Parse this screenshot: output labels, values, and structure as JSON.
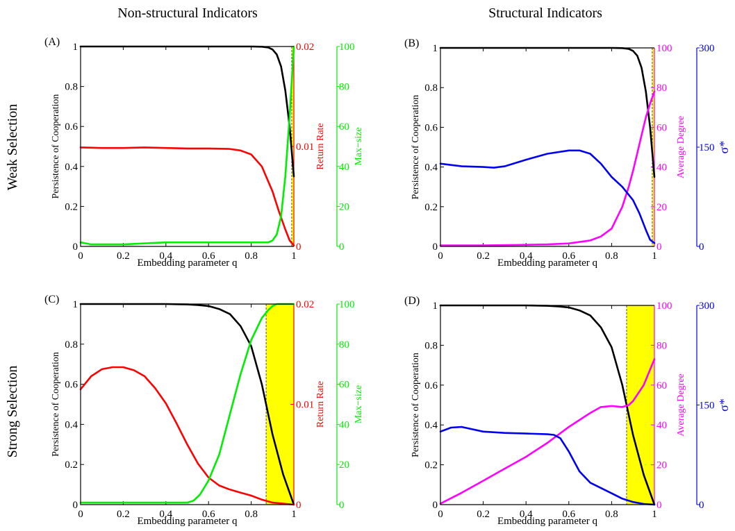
{
  "header": {
    "col_left": "Non-structural Indicators",
    "col_right": "Structural Indicators",
    "row_top": "Weak Selection",
    "row_bottom": "Strong Selection"
  },
  "colors": {
    "coop": "#000000",
    "return_rate": "#ff0000",
    "max_size": "#00ee00",
    "avg_degree": "#ff00ff",
    "sigma": "#0000ee",
    "shade": "#ffff00"
  },
  "chart_data": [
    {
      "panel": "(A)",
      "type": "line",
      "xlabel": "Embedding parameter q",
      "xlim": [
        0,
        1
      ],
      "xticks": [
        "0",
        "0.2",
        "0.4",
        "0.6",
        "0.8",
        "1"
      ],
      "axes": [
        {
          "label": "Persistence of Cooperation",
          "side": "left",
          "lim": [
            0,
            1
          ],
          "ticks": [
            "0",
            "0.2",
            "0.4",
            "0.6",
            "0.8",
            "1"
          ],
          "color": "#000000"
        },
        {
          "label": "Return Rate",
          "side": "right",
          "lim": [
            0,
            0.02
          ],
          "ticks": [
            "0",
            "0.01",
            "0.02"
          ],
          "color": "#ff0000"
        },
        {
          "label": "Max−size",
          "side": "right-outer",
          "lim": [
            0,
            100
          ],
          "ticks": [
            "0",
            "20",
            "40",
            "60",
            "80",
            "100"
          ],
          "color": "#00ee00"
        }
      ],
      "shaded_region": [
        0.99,
        1
      ],
      "series": [
        {
          "axis": 0,
          "color": "#000000",
          "x": [
            0,
            0.2,
            0.4,
            0.6,
            0.8,
            0.85,
            0.88,
            0.9,
            0.92,
            0.94,
            0.96,
            0.98,
            1.0
          ],
          "y": [
            1,
            1,
            1,
            1,
            1,
            0.999,
            0.995,
            0.985,
            0.96,
            0.9,
            0.78,
            0.6,
            0.35
          ]
        },
        {
          "axis": 1,
          "color": "#ff0000",
          "x": [
            0,
            0.1,
            0.2,
            0.3,
            0.4,
            0.5,
            0.6,
            0.7,
            0.75,
            0.8,
            0.85,
            0.9,
            0.93,
            0.96,
            0.98,
            1.0
          ],
          "y": [
            0.0099,
            0.00985,
            0.00985,
            0.0099,
            0.00985,
            0.0098,
            0.0098,
            0.00975,
            0.0096,
            0.0092,
            0.008,
            0.0055,
            0.0035,
            0.0017,
            0.0006,
            0.0001
          ]
        },
        {
          "axis": 2,
          "color": "#00ee00",
          "x": [
            0,
            0.05,
            0.2,
            0.4,
            0.6,
            0.8,
            0.88,
            0.9,
            0.92,
            0.94,
            0.96,
            0.98,
            1.0
          ],
          "y": [
            2,
            1,
            1,
            2,
            2,
            2,
            2,
            3,
            6,
            15,
            35,
            65,
            100
          ]
        }
      ]
    },
    {
      "panel": "(B)",
      "type": "line",
      "xlabel": "Embedding parameter q",
      "xlim": [
        0,
        1
      ],
      "xticks": [
        "0",
        "0.2",
        "0.4",
        "0.6",
        "0.8",
        "1"
      ],
      "axes": [
        {
          "label": "Persistence of Cooperation",
          "side": "left",
          "lim": [
            0,
            1
          ],
          "ticks": [
            "0",
            "0.2",
            "0.4",
            "0.6",
            "0.8",
            "1"
          ],
          "color": "#000000"
        },
        {
          "label": "Average Degree",
          "side": "right",
          "lim": [
            0,
            100
          ],
          "ticks": [
            "0",
            "20",
            "40",
            "60",
            "80",
            "100"
          ],
          "color": "#ff00ff"
        },
        {
          "label": "σ*",
          "side": "right-outer",
          "lim": [
            0,
            300
          ],
          "ticks": [
            "0",
            "150",
            "300"
          ],
          "color": "#0000ee"
        }
      ],
      "shaded_region": [
        0.99,
        1
      ],
      "series": [
        {
          "axis": 0,
          "color": "#000000",
          "x": [
            0,
            0.2,
            0.4,
            0.6,
            0.8,
            0.85,
            0.88,
            0.9,
            0.92,
            0.94,
            0.96,
            0.98,
            1.0
          ],
          "y": [
            1,
            1,
            1,
            1,
            1,
            0.999,
            0.995,
            0.985,
            0.96,
            0.9,
            0.78,
            0.6,
            0.35
          ]
        },
        {
          "axis": 1,
          "color": "#ff00ff",
          "x": [
            0,
            0.2,
            0.4,
            0.5,
            0.6,
            0.7,
            0.75,
            0.8,
            0.85,
            0.88,
            0.9,
            0.92,
            0.94,
            0.96,
            0.98,
            1.0
          ],
          "y": [
            0.5,
            0.5,
            0.8,
            1,
            1.5,
            3,
            5,
            9,
            20,
            30,
            38,
            47,
            56,
            65,
            72,
            78
          ]
        },
        {
          "axis": 2,
          "color": "#0000ee",
          "x": [
            0,
            0.1,
            0.2,
            0.25,
            0.3,
            0.4,
            0.5,
            0.6,
            0.65,
            0.7,
            0.75,
            0.8,
            0.85,
            0.9,
            0.93,
            0.96,
            0.98,
            1.0
          ],
          "y": [
            125,
            121,
            120,
            119,
            121,
            131,
            140,
            145,
            145,
            140,
            125,
            105,
            90,
            70,
            50,
            25,
            10,
            5
          ]
        }
      ]
    },
    {
      "panel": "(C)",
      "type": "line",
      "xlabel": "Embedding parameter q",
      "xlim": [
        0,
        1
      ],
      "xticks": [
        "0",
        "0.2",
        "0.4",
        "0.6",
        "0.8",
        "1"
      ],
      "axes": [
        {
          "label": "Persistence of Cooperation",
          "side": "left",
          "lim": [
            0,
            1
          ],
          "ticks": [
            "0",
            "0.2",
            "0.4",
            "0.6",
            "0.8",
            "1"
          ],
          "color": "#000000"
        },
        {
          "label": "Return Rate",
          "side": "right",
          "lim": [
            0,
            0.02
          ],
          "ticks": [
            "0",
            "0.01",
            "0.02"
          ],
          "color": "#ff0000"
        },
        {
          "label": "Max−size",
          "side": "right-outer",
          "lim": [
            0,
            100
          ],
          "ticks": [
            "0",
            "20",
            "40",
            "60",
            "80",
            "100"
          ],
          "color": "#00ee00"
        }
      ],
      "shaded_region": [
        0.87,
        1
      ],
      "series": [
        {
          "axis": 0,
          "color": "#000000",
          "x": [
            0,
            0.2,
            0.4,
            0.5,
            0.55,
            0.6,
            0.65,
            0.7,
            0.75,
            0.8,
            0.85,
            0.9,
            0.95,
            1.0
          ],
          "y": [
            1,
            1,
            1,
            0.998,
            0.995,
            0.99,
            0.975,
            0.95,
            0.89,
            0.79,
            0.6,
            0.35,
            0.15,
            0.0
          ]
        },
        {
          "axis": 1,
          "color": "#ff0000",
          "x": [
            0,
            0.05,
            0.1,
            0.15,
            0.2,
            0.25,
            0.3,
            0.35,
            0.4,
            0.45,
            0.5,
            0.55,
            0.6,
            0.65,
            0.7,
            0.75,
            0.8,
            0.85,
            0.9,
            0.95,
            1.0
          ],
          "y": [
            0.0115,
            0.0128,
            0.0135,
            0.0137,
            0.0137,
            0.0134,
            0.0128,
            0.0116,
            0.0101,
            0.0081,
            0.006,
            0.0041,
            0.0027,
            0.0019,
            0.0015,
            0.0012,
            0.0009,
            0.0005,
            0.0002,
            0.0001,
            0.0
          ]
        },
        {
          "axis": 2,
          "color": "#00ee00",
          "x": [
            0,
            0.2,
            0.4,
            0.5,
            0.53,
            0.56,
            0.6,
            0.65,
            0.7,
            0.75,
            0.8,
            0.85,
            0.88,
            0.9,
            0.92,
            0.95,
            1.0
          ],
          "y": [
            1,
            1,
            1,
            1,
            2,
            5,
            12,
            25,
            45,
            65,
            82,
            93,
            97,
            99,
            100,
            100,
            100
          ]
        }
      ]
    },
    {
      "panel": "(D)",
      "type": "line",
      "xlabel": "Embedding parameter q",
      "xlim": [
        0,
        1
      ],
      "xticks": [
        "0",
        "0.2",
        "0.4",
        "0.6",
        "0.8",
        "1"
      ],
      "axes": [
        {
          "label": "Persistence of Cooperation",
          "side": "left",
          "lim": [
            0,
            1
          ],
          "ticks": [
            "0",
            "0.2",
            "0.4",
            "0.6",
            "0.8",
            "1"
          ],
          "color": "#000000"
        },
        {
          "label": "Average Degree",
          "side": "right",
          "lim": [
            0,
            100
          ],
          "ticks": [
            "0",
            "20",
            "40",
            "60",
            "80",
            "100"
          ],
          "color": "#ff00ff"
        },
        {
          "label": "σ*",
          "side": "right-outer",
          "lim": [
            0,
            300
          ],
          "ticks": [
            "0",
            "150",
            "300"
          ],
          "color": "#0000ee"
        }
      ],
      "shaded_region": [
        0.87,
        1
      ],
      "series": [
        {
          "axis": 0,
          "color": "#000000",
          "x": [
            0,
            0.2,
            0.4,
            0.5,
            0.55,
            0.6,
            0.65,
            0.7,
            0.75,
            0.8,
            0.85,
            0.9,
            0.95,
            1.0
          ],
          "y": [
            1,
            1,
            1,
            0.998,
            0.995,
            0.99,
            0.975,
            0.95,
            0.89,
            0.79,
            0.6,
            0.35,
            0.15,
            0.0
          ]
        },
        {
          "axis": 1,
          "color": "#ff00ff",
          "x": [
            0,
            0.1,
            0.2,
            0.3,
            0.4,
            0.5,
            0.6,
            0.7,
            0.75,
            0.8,
            0.85,
            0.88,
            0.9,
            0.95,
            1.0
          ],
          "y": [
            0.5,
            6,
            12,
            18,
            24,
            31,
            39,
            46,
            49,
            49.5,
            49,
            50,
            52,
            60,
            73
          ]
        },
        {
          "axis": 2,
          "color": "#0000ee",
          "x": [
            0,
            0.05,
            0.1,
            0.2,
            0.3,
            0.4,
            0.5,
            0.53,
            0.56,
            0.6,
            0.65,
            0.7,
            0.75,
            0.8,
            0.85,
            0.9,
            0.95,
            1.0
          ],
          "y": [
            110,
            116,
            117,
            110,
            108,
            107,
            106,
            105,
            100,
            80,
            50,
            33,
            25,
            17,
            9,
            4,
            1,
            0
          ]
        }
      ]
    }
  ]
}
